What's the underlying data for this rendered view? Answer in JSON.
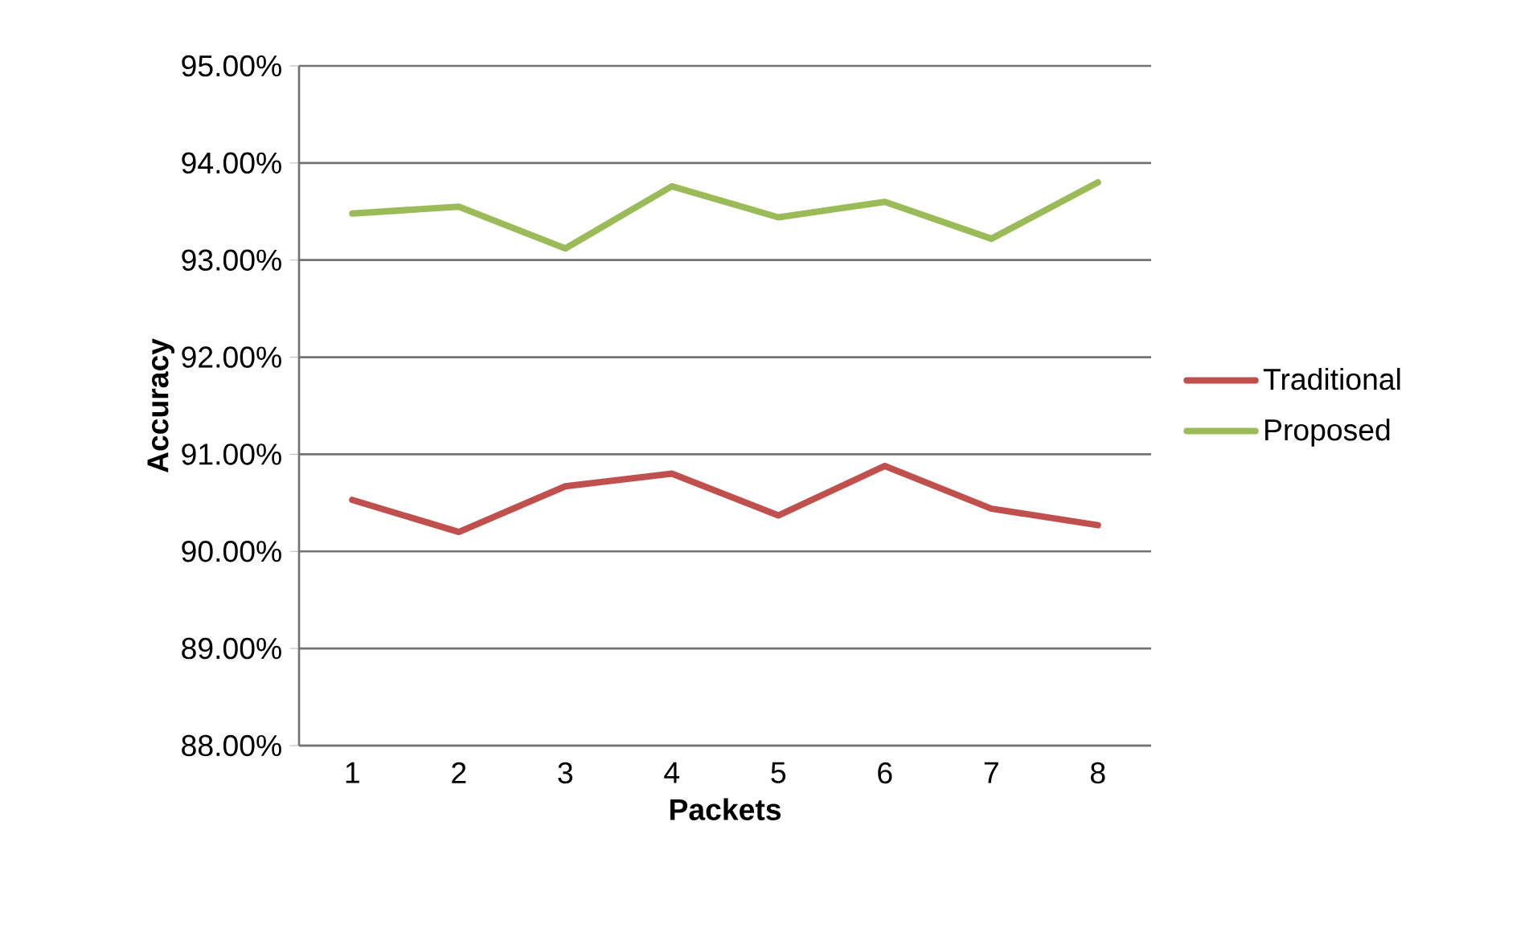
{
  "chart_data": {
    "type": "line",
    "xlabel": "Packets",
    "ylabel": "Accuracy",
    "categories": [
      "1",
      "2",
      "3",
      "4",
      "5",
      "6",
      "7",
      "8"
    ],
    "series": [
      {
        "name": "Traditional",
        "color": "#c0504d",
        "values": [
          90.53,
          90.2,
          90.67,
          90.8,
          90.37,
          90.88,
          90.44,
          90.27
        ]
      },
      {
        "name": "Proposed",
        "color": "#9bbb59",
        "values": [
          93.48,
          93.55,
          93.12,
          93.76,
          93.44,
          93.6,
          93.22,
          93.8
        ]
      }
    ],
    "ylim": [
      88,
      95
    ],
    "yticks": [
      {
        "value": 88,
        "label": "88.00%"
      },
      {
        "value": 89,
        "label": "89.00%"
      },
      {
        "value": 90,
        "label": "90.00%"
      },
      {
        "value": 91,
        "label": "91.00%"
      },
      {
        "value": 92,
        "label": "92.00%"
      },
      {
        "value": 93,
        "label": "93.00%"
      },
      {
        "value": 94,
        "label": "94.00%"
      },
      {
        "value": 95,
        "label": "95.00%"
      }
    ],
    "grid": "y",
    "legend": "right",
    "marker": "none",
    "line_style": "solid"
  }
}
